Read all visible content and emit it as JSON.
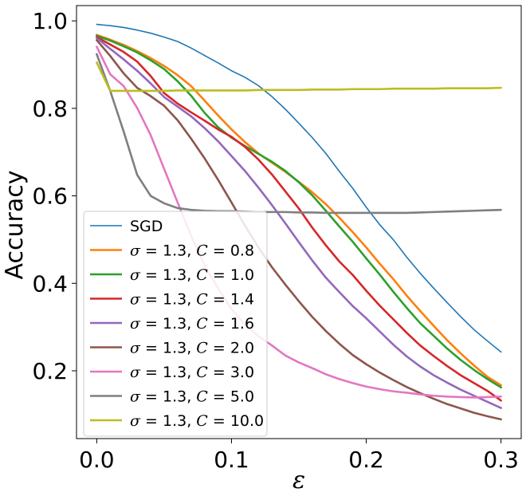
{
  "chart_data": {
    "type": "line",
    "xlabel": "ε",
    "ylabel": "Accuracy",
    "xlim": [
      -0.015,
      0.315
    ],
    "ylim": [
      0.045,
      1.035
    ],
    "grid": false,
    "legend_position": "lower-left",
    "x_ticks": [
      0.0,
      0.1,
      0.2,
      0.3
    ],
    "x_tick_labels": [
      "0.0",
      "0.1",
      "0.2",
      "0.3"
    ],
    "y_ticks": [
      0.2,
      0.4,
      0.6,
      0.8,
      1.0
    ],
    "y_tick_labels": [
      "0.2",
      "0.4",
      "0.6",
      "0.8",
      "1.0"
    ],
    "x": [
      0.0,
      0.01,
      0.02,
      0.03,
      0.04,
      0.05,
      0.06,
      0.07,
      0.08,
      0.09,
      0.1,
      0.11,
      0.12,
      0.13,
      0.14,
      0.15,
      0.16,
      0.17,
      0.18,
      0.19,
      0.2,
      0.21,
      0.22,
      0.23,
      0.24,
      0.25,
      0.26,
      0.27,
      0.28,
      0.29,
      0.3
    ],
    "series": [
      {
        "name": "SGD",
        "label_parts": [
          "SGD"
        ],
        "color": "#1f77b4",
        "width": 1.6,
        "values": [
          0.992,
          0.989,
          0.985,
          0.979,
          0.972,
          0.963,
          0.953,
          0.938,
          0.921,
          0.904,
          0.886,
          0.871,
          0.852,
          0.827,
          0.798,
          0.766,
          0.733,
          0.697,
          0.656,
          0.617,
          0.574,
          0.534,
          0.5,
          0.46,
          0.423,
          0.389,
          0.356,
          0.324,
          0.294,
          0.268,
          0.243
        ]
      },
      {
        "name": "σ = 1.3, C = 0.8",
        "label_parts": [
          "σ",
          " = 1.3, ",
          "C",
          " = 0.8"
        ],
        "color": "#ff7f0e",
        "width": 2.6,
        "values": [
          0.968,
          0.957,
          0.945,
          0.931,
          0.915,
          0.897,
          0.876,
          0.851,
          0.818,
          0.784,
          0.752,
          0.723,
          0.697,
          0.676,
          0.655,
          0.632,
          0.608,
          0.581,
          0.55,
          0.517,
          0.482,
          0.445,
          0.41,
          0.372,
          0.337,
          0.303,
          0.27,
          0.24,
          0.212,
          0.186,
          0.167
        ]
      },
      {
        "name": "σ = 1.3, C = 1.0",
        "label_parts": [
          "σ",
          " = 1.3, ",
          "C",
          " = 1.0"
        ],
        "color": "#2ca02c",
        "width": 2.6,
        "values": [
          0.966,
          0.955,
          0.942,
          0.928,
          0.91,
          0.89,
          0.862,
          0.829,
          0.79,
          0.757,
          0.733,
          0.714,
          0.696,
          0.678,
          0.657,
          0.631,
          0.601,
          0.566,
          0.53,
          0.495,
          0.457,
          0.42,
          0.381,
          0.344,
          0.309,
          0.28,
          0.251,
          0.225,
          0.202,
          0.181,
          0.162
        ]
      },
      {
        "name": "σ = 1.3, C = 1.4",
        "label_parts": [
          "σ",
          " = 1.3, ",
          "C",
          " = 1.4"
        ],
        "color": "#d62728",
        "width": 2.6,
        "values": [
          0.963,
          0.946,
          0.929,
          0.907,
          0.874,
          0.835,
          0.811,
          0.791,
          0.772,
          0.752,
          0.735,
          0.712,
          0.683,
          0.649,
          0.61,
          0.571,
          0.527,
          0.487,
          0.45,
          0.419,
          0.383,
          0.349,
          0.318,
          0.287,
          0.258,
          0.234,
          0.211,
          0.19,
          0.172,
          0.154,
          0.132
        ]
      },
      {
        "name": "σ = 1.3, C = 1.6",
        "label_parts": [
          "σ",
          " = 1.3, ",
          "C",
          " = 1.6"
        ],
        "color": "#9467bd",
        "width": 2.6,
        "values": [
          0.961,
          0.936,
          0.912,
          0.886,
          0.857,
          0.826,
          0.804,
          0.782,
          0.755,
          0.725,
          0.691,
          0.657,
          0.619,
          0.579,
          0.537,
          0.494,
          0.452,
          0.413,
          0.38,
          0.348,
          0.32,
          0.29,
          0.26,
          0.233,
          0.21,
          0.19,
          0.173,
          0.157,
          0.143,
          0.129,
          0.115
        ]
      },
      {
        "name": "σ = 1.3, C = 2.0",
        "label_parts": [
          "σ",
          " = 1.3, ",
          "C",
          " = 2.0"
        ],
        "color": "#8c564b",
        "width": 2.6,
        "values": [
          0.956,
          0.92,
          0.88,
          0.847,
          0.828,
          0.806,
          0.773,
          0.731,
          0.686,
          0.637,
          0.585,
          0.532,
          0.482,
          0.437,
          0.397,
          0.359,
          0.323,
          0.291,
          0.262,
          0.236,
          0.215,
          0.196,
          0.179,
          0.163,
          0.149,
          0.136,
          0.124,
          0.114,
          0.104,
          0.096,
          0.089
        ]
      },
      {
        "name": "σ = 1.3, C = 3.0",
        "label_parts": [
          "σ",
          " = 1.3, ",
          "C",
          " = 3.0"
        ],
        "color": "#e377c2",
        "width": 2.6,
        "values": [
          0.941,
          0.878,
          0.851,
          0.801,
          0.739,
          0.662,
          0.585,
          0.509,
          0.441,
          0.389,
          0.341,
          0.306,
          0.279,
          0.258,
          0.235,
          0.219,
          0.206,
          0.192,
          0.181,
          0.172,
          0.164,
          0.158,
          0.153,
          0.15,
          0.146,
          0.143,
          0.141,
          0.14,
          0.139,
          0.14,
          0.141
        ]
      },
      {
        "name": "σ = 1.3, C = 5.0",
        "label_parts": [
          "σ",
          " = 1.3, ",
          "C",
          " = 5.0"
        ],
        "color": "#7f7f7f",
        "width": 2.6,
        "values": [
          0.924,
          0.84,
          0.747,
          0.648,
          0.6,
          0.583,
          0.572,
          0.568,
          0.566,
          0.565,
          0.565,
          0.564,
          0.563,
          0.563,
          0.563,
          0.562,
          0.562,
          0.561,
          0.561,
          0.561,
          0.561,
          0.561,
          0.561,
          0.561,
          0.562,
          0.563,
          0.564,
          0.565,
          0.566,
          0.567,
          0.568
        ]
      },
      {
        "name": "σ = 1.3, C = 10.0",
        "label_parts": [
          "σ",
          " = 1.3, ",
          "C",
          " = 10.0"
        ],
        "color": "#bcbd22",
        "width": 2.6,
        "values": [
          0.905,
          0.84,
          0.84,
          0.84,
          0.84,
          0.84,
          0.841,
          0.841,
          0.841,
          0.841,
          0.841,
          0.841,
          0.842,
          0.842,
          0.842,
          0.842,
          0.843,
          0.843,
          0.843,
          0.844,
          0.844,
          0.844,
          0.845,
          0.845,
          0.845,
          0.845,
          0.846,
          0.846,
          0.846,
          0.846,
          0.847
        ]
      }
    ]
  }
}
